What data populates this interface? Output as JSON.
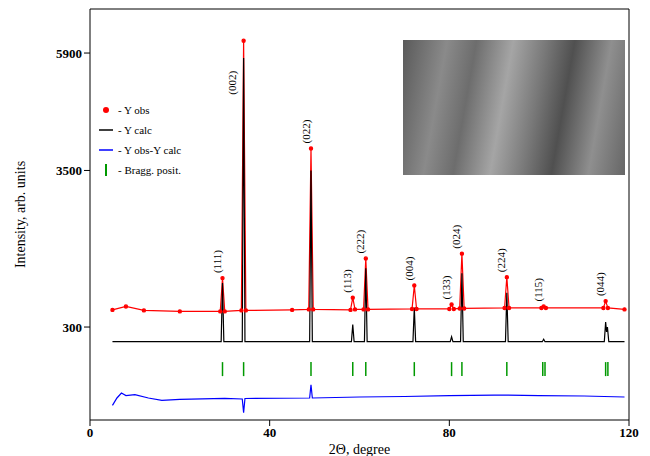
{
  "chart_data": {
    "type": "line",
    "x_label": "2Θ, degree",
    "y_label": "Intensity, arb. units",
    "xlim": [
      0,
      120
    ],
    "xticks": [
      0,
      40,
      80,
      120
    ],
    "ylim": [
      -1600,
      6800
    ],
    "yticks": [
      300,
      3500,
      5900
    ],
    "grid": false,
    "legend": "upper left",
    "series": [
      {
        "name": "- Y obs",
        "type": "line",
        "color": "#ff0000",
        "marker": "circle",
        "line_style": "solid",
        "x": [
          5,
          8,
          12,
          20,
          29,
          29.5,
          30,
          33.7,
          34.2,
          34.7,
          45,
          48.7,
          49.2,
          49.7,
          58,
          58.5,
          59,
          60.9,
          61.4,
          61.9,
          71.7,
          72.2,
          72.7,
          80,
          80.5,
          81,
          82.3,
          82.8,
          83.3,
          92.3,
          92.8,
          93.3,
          100.5,
          101,
          101.5,
          114.3,
          114.8,
          115.3,
          119
        ],
        "values": [
          650,
          720,
          640,
          620,
          620,
          1300,
          620,
          640,
          6150,
          640,
          650,
          660,
          3950,
          660,
          650,
          900,
          660,
          660,
          1700,
          660,
          670,
          1150,
          670,
          670,
          760,
          670,
          680,
          1800,
          680,
          690,
          1320,
          690,
          690,
          720,
          690,
          690,
          830,
          690,
          660
        ]
      },
      {
        "name": "- Y calc",
        "type": "line",
        "color": "#000000",
        "marker": "none",
        "line_style": "solid",
        "x": [
          5,
          29.2,
          29.5,
          29.8,
          33.9,
          34.2,
          34.5,
          48.9,
          49.2,
          49.5,
          58.2,
          58.5,
          58.8,
          61.1,
          61.4,
          61.7,
          71.9,
          72.2,
          72.5,
          80.2,
          80.5,
          80.8,
          82.5,
          82.8,
          83.1,
          92.5,
          92.8,
          93.1,
          100.7,
          101,
          101.3,
          114.5,
          114.8,
          115,
          115.2,
          115.5,
          119
        ],
        "values": [
          0,
          0,
          1200,
          0,
          0,
          5800,
          0,
          0,
          3500,
          0,
          0,
          350,
          0,
          0,
          1500,
          0,
          0,
          700,
          0,
          0,
          100,
          0,
          0,
          1400,
          0,
          0,
          1000,
          0,
          0,
          50,
          0,
          0,
          400,
          200,
          300,
          0,
          0
        ]
      },
      {
        "name": "- Y obs-Y calc",
        "type": "line",
        "color": "#0000ff",
        "marker": "none",
        "line_style": "solid",
        "x": [
          5,
          6,
          7,
          8,
          10,
          13,
          16,
          20,
          25,
          30,
          33.9,
          34.2,
          34.5,
          48.9,
          49.2,
          49.5,
          60,
          70,
          80,
          90,
          100,
          110,
          119
        ],
        "values": [
          -1300,
          -1150,
          -1050,
          -1100,
          -1080,
          -1150,
          -1200,
          -1180,
          -1170,
          -1160,
          -1170,
          -1450,
          -1160,
          -1150,
          -880,
          -1150,
          -1130,
          -1120,
          -1100,
          -1090,
          -1100,
          -1110,
          -1130
        ]
      },
      {
        "name": "- Bragg. posit.",
        "type": "scatter",
        "color": "#009900",
        "marker": "tick",
        "x": [
          29.5,
          34.2,
          49.2,
          58.5,
          61.4,
          72.2,
          80.5,
          82.8,
          92.8,
          100.8,
          101.3,
          114.8,
          115.3
        ],
        "values": [
          -560,
          -560,
          -560,
          -560,
          -560,
          -560,
          -560,
          -560,
          -560,
          -560,
          -560,
          -560,
          -560
        ]
      }
    ],
    "annotations": [
      {
        "text": "(111)",
        "x": 29.5
      },
      {
        "text": "(002)",
        "x": 34.2
      },
      {
        "text": "(022)",
        "x": 49.2
      },
      {
        "text": "(113)",
        "x": 58.5
      },
      {
        "text": "(222)",
        "x": 61.4
      },
      {
        "text": "(004)",
        "x": 72.2
      },
      {
        "text": "(133)",
        "x": 80.5
      },
      {
        "text": "(024)",
        "x": 82.8
      },
      {
        "text": "(224)",
        "x": 92.8
      },
      {
        "text": "(115)",
        "x": 101
      },
      {
        "text": "(044)",
        "x": 114.8
      }
    ]
  }
}
